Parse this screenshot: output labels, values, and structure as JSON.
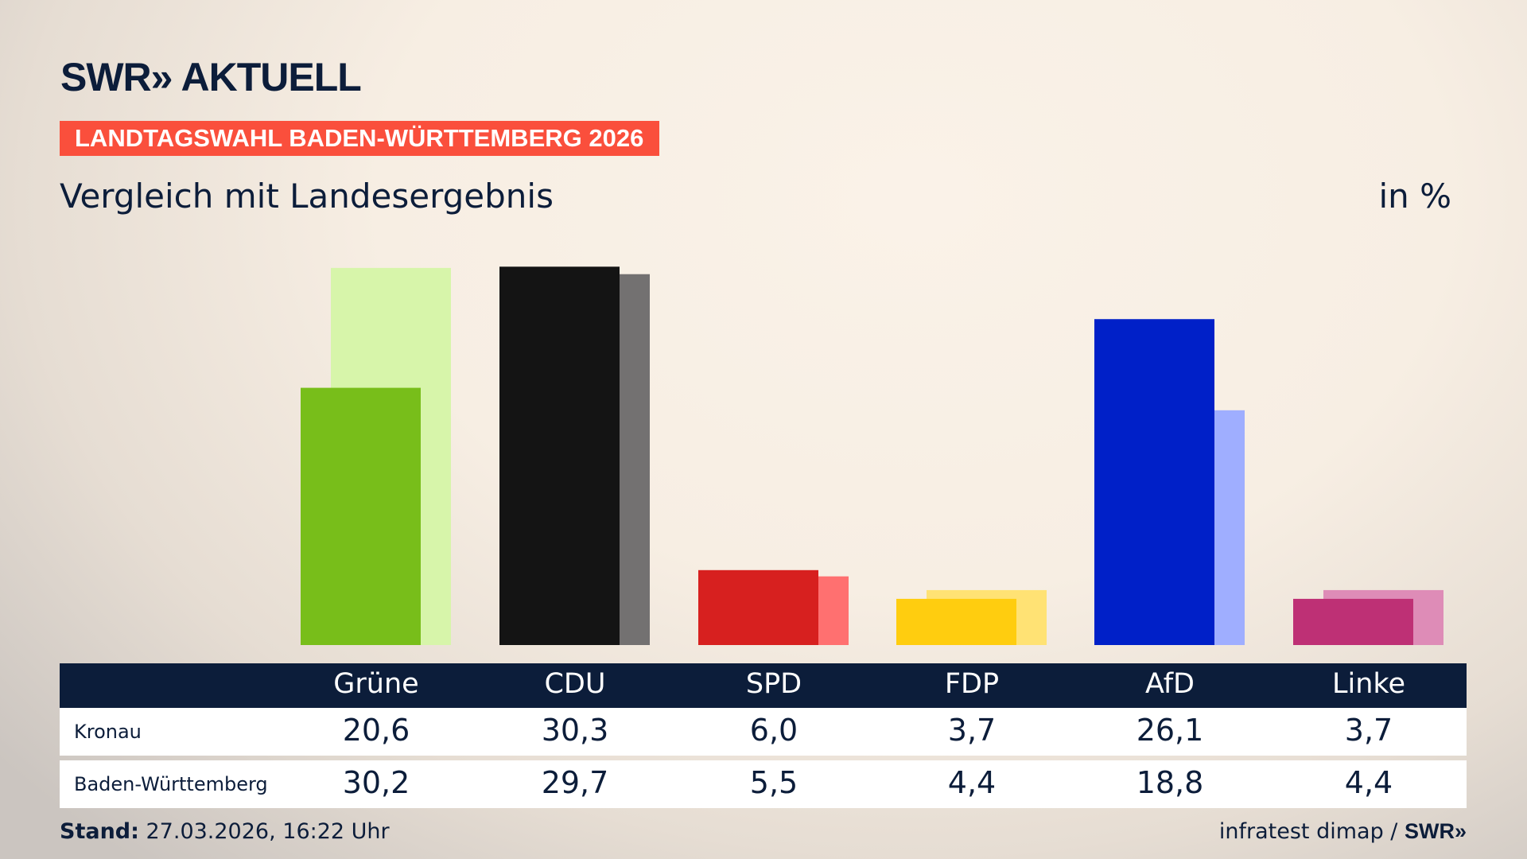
{
  "header": {
    "logo": "SWR» AKTUELL",
    "banner": "LANDTAGSWAHL BADEN-WÜRTTEMBERG 2026",
    "subtitle": "Vergleich mit Landesergebnis",
    "unit": "in %"
  },
  "chart_data": {
    "type": "bar",
    "categories": [
      "Grüne",
      "CDU",
      "SPD",
      "FDP",
      "AfD",
      "Linke"
    ],
    "series": [
      {
        "name": "Kronau",
        "values": [
          20.6,
          30.3,
          6.0,
          3.7,
          26.1,
          3.7
        ],
        "display": [
          "20,6",
          "30,3",
          "6,0",
          "3,7",
          "26,1",
          "3,7"
        ],
        "colors": [
          "#78be1a",
          "#141414",
          "#d7201f",
          "#ffcd0f",
          "#0020c8",
          "#be3075"
        ]
      },
      {
        "name": "Baden-Württemberg",
        "values": [
          30.2,
          29.7,
          5.5,
          4.4,
          18.8,
          4.4
        ],
        "display": [
          "30,2",
          "29,7",
          "5,5",
          "4,4",
          "18,8",
          "4,4"
        ],
        "colors": [
          "#d7f5aa",
          "#737171",
          "#ff7070",
          "#ffe274",
          "#9faeff",
          "#de8cb7"
        ]
      }
    ],
    "ylim": [
      0,
      30.3
    ],
    "grid": false
  },
  "footer": {
    "stand_label": "Stand:",
    "stand_value": " 27.03.2026, 16:22 Uhr",
    "source": "infratest dimap / ",
    "source_logo": "SWR»"
  }
}
